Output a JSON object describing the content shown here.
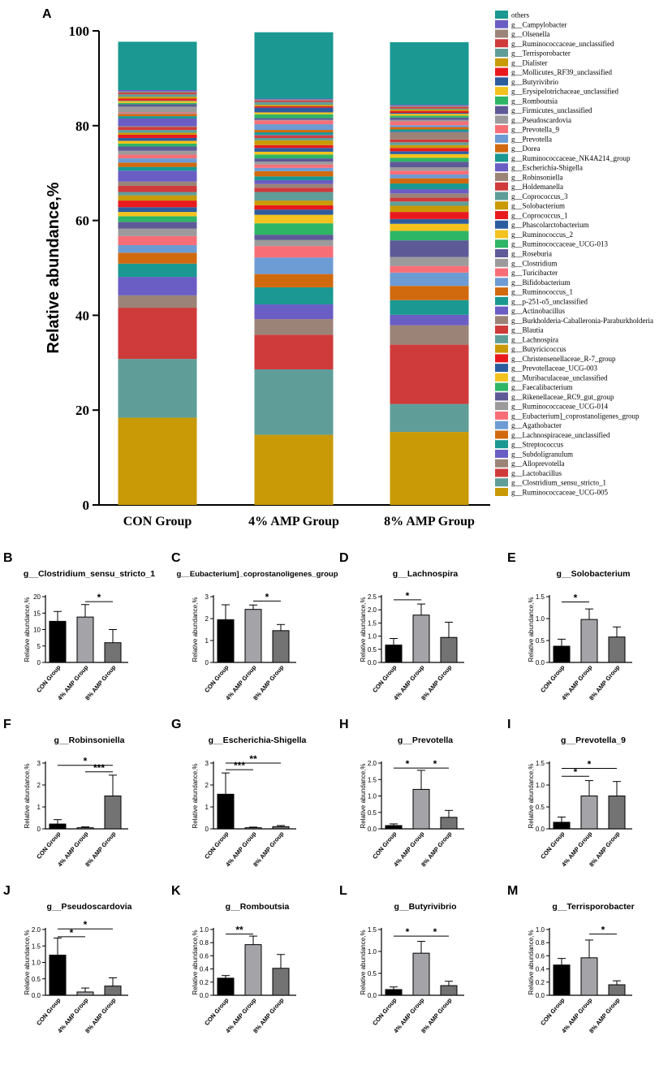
{
  "chart_data": [
    {
      "panel": "A",
      "type": "stacked_bar",
      "ylabel": "Relative abundance,%",
      "ylim": [
        0,
        100
      ],
      "yticks": [
        "0",
        "20",
        "40",
        "60",
        "80",
        "100"
      ],
      "categories": [
        "CON Group",
        "4%  AMP  Group",
        "8%  AMP  Group"
      ],
      "series": [
        {
          "name": "g__Ruminococcaceae_UCG-005",
          "color": "#C99A06",
          "values": [
            18.4,
            14.8,
            15.4
          ]
        },
        {
          "name": "g__Clostridium_sensu_stricto_1",
          "color": "#5F9E98",
          "values": [
            12.4,
            13.8,
            5.9
          ]
        },
        {
          "name": "g__Lactobacillus",
          "color": "#CF3A3B",
          "values": [
            10.8,
            7.3,
            12.5
          ]
        },
        {
          "name": "g__Alloprevotella",
          "color": "#9B8378",
          "values": [
            2.6,
            3.3,
            4.1
          ]
        },
        {
          "name": "g__Subdoligranulum",
          "color": "#6A5DC4",
          "values": [
            3.9,
            3.1,
            2.2
          ]
        },
        {
          "name": "g__Streptococcus",
          "color": "#1A9891",
          "values": [
            2.8,
            3.6,
            3.1
          ]
        },
        {
          "name": "g__Lachnospiraceae_unclassified",
          "color": "#D16A0F",
          "values": [
            2.3,
            2.8,
            3.0
          ]
        },
        {
          "name": "g__Agathobacter",
          "color": "#6D9BD3",
          "values": [
            1.6,
            3.5,
            2.8
          ]
        },
        {
          "name": "g__Eubacterium]_coprostanoligenes_group",
          "color": "#F76E77",
          "values": [
            1.9,
            2.4,
            1.4
          ]
        },
        {
          "name": "g__Ruminococcaceae_UCG-014",
          "color": "#9C9A9B",
          "values": [
            1.6,
            1.3,
            1.9
          ]
        },
        {
          "name": "g__Rikenellaceae_RC9_gut_group",
          "color": "#5E5A97",
          "values": [
            1.4,
            1.1,
            3.5
          ]
        },
        {
          "name": "g__Faecalibacterium",
          "color": "#2EB566",
          "values": [
            1.2,
            2.4,
            2.0
          ]
        },
        {
          "name": "g__Muribaculaceae_unclassified",
          "color": "#F3C21E",
          "values": [
            0.9,
            1.8,
            1.5
          ]
        },
        {
          "name": "g__Prevotellaceae_UCG-003",
          "color": "#2D5C9E",
          "values": [
            1.0,
            1.1,
            1.0
          ]
        },
        {
          "name": "g__Christensenellaceae_R-7_group",
          "color": "#E81A1E",
          "values": [
            1.4,
            0.9,
            1.5
          ]
        },
        {
          "name": "g__Butyricicoccus",
          "color": "#C99A06",
          "values": [
            1.1,
            1.0,
            1.3
          ]
        },
        {
          "name": "g__Lachnospira",
          "color": "#5F9E98",
          "values": [
            0.7,
            1.8,
            0.9
          ]
        },
        {
          "name": "g__Blautia",
          "color": "#CF3A3B",
          "values": [
            1.3,
            0.9,
            0.8
          ]
        },
        {
          "name": "g__Burkholderia-Caballeronia-Paraburkholderia",
          "color": "#9B8378",
          "values": [
            0.9,
            0.8,
            0.9
          ]
        },
        {
          "name": "g__Actinobacillus",
          "color": "#6A5DC4",
          "values": [
            2.3,
            0.8,
            0.9
          ]
        },
        {
          "name": "g__p-251-o5_unclassified",
          "color": "#1A9891",
          "values": [
            0.8,
            0.8,
            1.2
          ]
        },
        {
          "name": "g__Ruminococcus_1",
          "color": "#D16A0F",
          "values": [
            0.9,
            1.1,
            1.1
          ]
        },
        {
          "name": "g__Bifidobacterium",
          "color": "#6D9BD3",
          "values": [
            0.9,
            0.7,
            0.8
          ]
        },
        {
          "name": "g__Turicibacter",
          "color": "#F76E77",
          "values": [
            0.8,
            0.7,
            0.8
          ]
        },
        {
          "name": "g__Clostridium",
          "color": "#9C9A9B",
          "values": [
            0.8,
            0.6,
            0.7
          ]
        },
        {
          "name": "g__Roseburia",
          "color": "#5E5A97",
          "values": [
            0.9,
            0.7,
            1.2
          ]
        },
        {
          "name": "g__Ruminococcaceae_UCG-013",
          "color": "#2EB566",
          "values": [
            0.6,
            0.8,
            0.8
          ]
        },
        {
          "name": "g__Ruminococcus_2",
          "color": "#F3C21E",
          "values": [
            0.6,
            0.6,
            0.8
          ]
        },
        {
          "name": "g__Phascolarctobacterium",
          "color": "#2D5C9E",
          "values": [
            0.6,
            0.8,
            0.6
          ]
        },
        {
          "name": "g__Coprococcus_1",
          "color": "#E81A1E",
          "values": [
            0.7,
            0.6,
            0.7
          ]
        },
        {
          "name": "g__Solobacterium",
          "color": "#C99A06",
          "values": [
            0.4,
            1.0,
            0.6
          ]
        },
        {
          "name": "g__Coprococcus_3",
          "color": "#5F9E98",
          "values": [
            0.6,
            0.5,
            0.6
          ]
        },
        {
          "name": "g__Holdemanella",
          "color": "#CF3A3B",
          "values": [
            0.6,
            0.5,
            0.6
          ]
        },
        {
          "name": "g__Robinsoniella",
          "color": "#9B8378",
          "values": [
            0.2,
            0.1,
            1.5
          ]
        },
        {
          "name": "g__Escherichia-Shigella",
          "color": "#6A5DC4",
          "values": [
            1.6,
            0.1,
            0.1
          ]
        },
        {
          "name": "g__Ruminococcaceae_NK4A214_group",
          "color": "#1A9891",
          "values": [
            0.5,
            0.5,
            0.5
          ]
        },
        {
          "name": "g__Dorea",
          "color": "#D16A0F",
          "values": [
            0.5,
            0.5,
            0.5
          ]
        },
        {
          "name": "g__Prevotella",
          "color": "#6D9BD3",
          "values": [
            0.1,
            1.2,
            0.4
          ]
        },
        {
          "name": "g__Prevotella_9",
          "color": "#F76E77",
          "values": [
            0.2,
            0.8,
            0.8
          ]
        },
        {
          "name": "g__Pseudoscardovia",
          "color": "#9C9A9B",
          "values": [
            1.2,
            0.1,
            0.3
          ]
        },
        {
          "name": "g__Firmicutes_unclassified",
          "color": "#5E5A97",
          "values": [
            0.5,
            0.4,
            0.5
          ]
        },
        {
          "name": "g__Romboutsia",
          "color": "#2EB566",
          "values": [
            0.3,
            0.8,
            0.4
          ]
        },
        {
          "name": "g__Erysipelotrichaceae_unclassified",
          "color": "#F3C21E",
          "values": [
            0.4,
            0.4,
            0.4
          ]
        },
        {
          "name": "g__Butyrivibrio",
          "color": "#2D5C9E",
          "values": [
            0.1,
            1.0,
            0.2
          ]
        },
        {
          "name": "g__Mollicutes_RF39_unclassified",
          "color": "#E81A1E",
          "values": [
            0.4,
            0.3,
            0.4
          ]
        },
        {
          "name": "g__Dialister",
          "color": "#C99A06",
          "values": [
            0.4,
            0.3,
            0.3
          ]
        },
        {
          "name": "g__Terrisporobacter",
          "color": "#5F9E98",
          "values": [
            0.5,
            0.6,
            0.2
          ]
        },
        {
          "name": "g__Ruminococcaceae_unclassified",
          "color": "#CF3A3B",
          "values": [
            0.3,
            0.3,
            0.3
          ]
        },
        {
          "name": "g__Olsenella",
          "color": "#9B8378",
          "values": [
            0.3,
            0.2,
            0.3
          ]
        },
        {
          "name": "g__Campylobacter",
          "color": "#6A5DC4",
          "values": [
            0.3,
            0.2,
            0.2
          ]
        },
        {
          "name": "others",
          "color": "#1A9891",
          "values": [
            10.2,
            14.0,
            13.2
          ]
        }
      ]
    },
    {
      "panel": "B",
      "type": "bar",
      "title": "g__Clostridium_sensu_stricto_1",
      "ylabel": "Relative abundance,%",
      "categories": [
        "CON Group",
        "4% AMP Group",
        "8% AMP Group"
      ],
      "values": [
        12.5,
        13.8,
        6.0
      ],
      "errors": [
        3.0,
        3.8,
        4.0
      ],
      "ylim": [
        0,
        20
      ],
      "yticks": [
        "0",
        "5",
        "10",
        "15",
        "20"
      ],
      "significance": [
        {
          "from": 1,
          "to": 2,
          "label": "*",
          "level": 18.5
        }
      ]
    },
    {
      "panel": "C",
      "type": "bar",
      "title": "g__Eubacterium]_coprostanoligenes_group",
      "ylabel": "Relative abundance,%",
      "categories": [
        "CON Group",
        "4% AMP Group",
        "8% AMP Group"
      ],
      "values": [
        1.95,
        2.42,
        1.45
      ],
      "errors": [
        0.68,
        0.2,
        0.28
      ],
      "ylim": [
        0,
        3
      ],
      "yticks": [
        "0",
        "1",
        "2",
        "3"
      ],
      "significance": [
        {
          "from": 1,
          "to": 2,
          "label": "*",
          "level": 2.8
        }
      ]
    },
    {
      "panel": "D",
      "type": "bar",
      "title": "g__Lachnospira",
      "ylabel": "Relative abundance,%",
      "categories": [
        "CON Group",
        "4% AMP Group",
        "8% AMP Group"
      ],
      "values": [
        0.66,
        1.8,
        0.95
      ],
      "errors": [
        0.25,
        0.42,
        0.58
      ],
      "ylim": [
        0,
        2.5
      ],
      "yticks": [
        "0.0",
        "0.5",
        "1.0",
        "1.5",
        "2.0",
        "2.5"
      ],
      "significance": [
        {
          "from": 0,
          "to": 1,
          "label": "*",
          "level": 2.38
        }
      ]
    },
    {
      "panel": "E",
      "type": "bar",
      "title": "g__Solobacterium",
      "ylabel": "Relative abundance,%",
      "categories": [
        "CON Group",
        "4% AMP Group",
        "8% AMP Group"
      ],
      "values": [
        0.37,
        0.98,
        0.58
      ],
      "errors": [
        0.16,
        0.24,
        0.23
      ],
      "ylim": [
        0,
        1.5
      ],
      "yticks": [
        "0.0",
        "0.5",
        "1.0",
        "1.5"
      ],
      "significance": [
        {
          "from": 0,
          "to": 1,
          "label": "*",
          "level": 1.38
        }
      ]
    },
    {
      "panel": "F",
      "type": "bar",
      "title": "g__Robinsoniella",
      "ylabel": "Relative abundance,%",
      "categories": [
        "CON Group",
        "4% AMP Group",
        "8% AMP Group"
      ],
      "values": [
        0.22,
        0.05,
        1.5
      ],
      "errors": [
        0.2,
        0.04,
        0.95
      ],
      "ylim": [
        0,
        3
      ],
      "yticks": [
        "0",
        "1",
        "2",
        "3"
      ],
      "significance": [
        {
          "from": 0,
          "to": 2,
          "label": "*",
          "level": 2.9
        },
        {
          "from": 1,
          "to": 2,
          "label": "***",
          "level": 2.6
        }
      ]
    },
    {
      "panel": "G",
      "type": "bar",
      "title": "g__Escherichia-Shigella",
      "ylabel": "Relative abundance,%",
      "categories": [
        "CON Group",
        "4% AMP Group",
        "8% AMP Group"
      ],
      "values": [
        1.58,
        0.05,
        0.1
      ],
      "errors": [
        0.97,
        0.03,
        0.05
      ],
      "ylim": [
        0,
        3
      ],
      "yticks": [
        "0",
        "1",
        "2",
        "3"
      ],
      "significance": [
        {
          "from": 0,
          "to": 2,
          "label": "**",
          "level": 3.0
        },
        {
          "from": 0,
          "to": 1,
          "label": "***",
          "level": 2.7
        }
      ]
    },
    {
      "panel": "H",
      "type": "bar",
      "title": "g__Prevotella",
      "ylabel": "Relative abundance,%",
      "categories": [
        "CON Group",
        "4% AMP Group",
        "8% AMP Group"
      ],
      "values": [
        0.1,
        1.2,
        0.35
      ],
      "errors": [
        0.05,
        0.58,
        0.21
      ],
      "ylim": [
        0,
        2.0
      ],
      "yticks": [
        "0.0",
        "0.5",
        "1.0",
        "1.5",
        "2.0"
      ],
      "significance": [
        {
          "from": 0,
          "to": 1,
          "label": "*",
          "level": 1.85
        },
        {
          "from": 1,
          "to": 2,
          "label": "*",
          "level": 1.85
        }
      ]
    },
    {
      "panel": "I",
      "type": "bar",
      "title": "g__Prevotella_9",
      "ylabel": "Relative abundance,%",
      "categories": [
        "CON Group",
        "4% AMP Group",
        "8% AMP Group"
      ],
      "values": [
        0.15,
        0.75,
        0.75
      ],
      "errors": [
        0.12,
        0.35,
        0.33
      ],
      "ylim": [
        0,
        1.5
      ],
      "yticks": [
        "0.0",
        "0.5",
        "1.0",
        "1.5"
      ],
      "significance": [
        {
          "from": 0,
          "to": 2,
          "label": "*",
          "level": 1.38
        },
        {
          "from": 0,
          "to": 1,
          "label": "*",
          "level": 1.2
        }
      ]
    },
    {
      "panel": "J",
      "type": "bar",
      "title": "g__Pseudoscardovia",
      "ylabel": "Relative abundance,%",
      "categories": [
        "CON Group",
        "4% AMP Group",
        "8% AMP Group"
      ],
      "values": [
        1.22,
        0.1,
        0.28
      ],
      "errors": [
        0.52,
        0.12,
        0.25
      ],
      "ylim": [
        0,
        2.0
      ],
      "yticks": [
        "0.0",
        "0.5",
        "1.0",
        "1.5",
        "2.0"
      ],
      "significance": [
        {
          "from": 0,
          "to": 2,
          "label": "*",
          "level": 2.02
        },
        {
          "from": 0,
          "to": 1,
          "label": "*",
          "level": 1.78
        }
      ]
    },
    {
      "panel": "K",
      "type": "bar",
      "title": "g__Romboutsia",
      "ylabel": "Relative abundance,%",
      "categories": [
        "CON Group",
        "4% AMP Group",
        "8% AMP Group"
      ],
      "values": [
        0.26,
        0.77,
        0.41
      ],
      "errors": [
        0.04,
        0.13,
        0.21
      ],
      "ylim": [
        0,
        1.0
      ],
      "yticks": [
        "0.0",
        "0.2",
        "0.4",
        "0.6",
        "0.8",
        "1.0"
      ],
      "significance": [
        {
          "from": 0,
          "to": 1,
          "label": "**",
          "level": 0.93
        }
      ]
    },
    {
      "panel": "L",
      "type": "bar",
      "title": "g__Butyrivibrio",
      "ylabel": "Relative abundance,%",
      "categories": [
        "CON Group",
        "4% AMP Group",
        "8% AMP Group"
      ],
      "values": [
        0.13,
        0.96,
        0.22
      ],
      "errors": [
        0.06,
        0.27,
        0.1
      ],
      "ylim": [
        0,
        1.5
      ],
      "yticks": [
        "0.0",
        "0.5",
        "1.0",
        "1.5"
      ],
      "significance": [
        {
          "from": 0,
          "to": 1,
          "label": "*",
          "level": 1.35
        },
        {
          "from": 1,
          "to": 2,
          "label": "*",
          "level": 1.35
        }
      ]
    },
    {
      "panel": "M",
      "type": "bar",
      "title": "g__Terrisporobacter",
      "ylabel": "Relative abundance,%",
      "categories": [
        "CON Group",
        "4% AMP Group",
        "8% AMP Group"
      ],
      "values": [
        0.46,
        0.57,
        0.16
      ],
      "errors": [
        0.1,
        0.27,
        0.06
      ],
      "ylim": [
        0,
        1.0
      ],
      "yticks": [
        "0.0",
        "0.2",
        "0.4",
        "0.6",
        "0.8",
        "1.0"
      ],
      "significance": [
        {
          "from": 1,
          "to": 2,
          "label": "*",
          "level": 0.93
        }
      ]
    }
  ]
}
